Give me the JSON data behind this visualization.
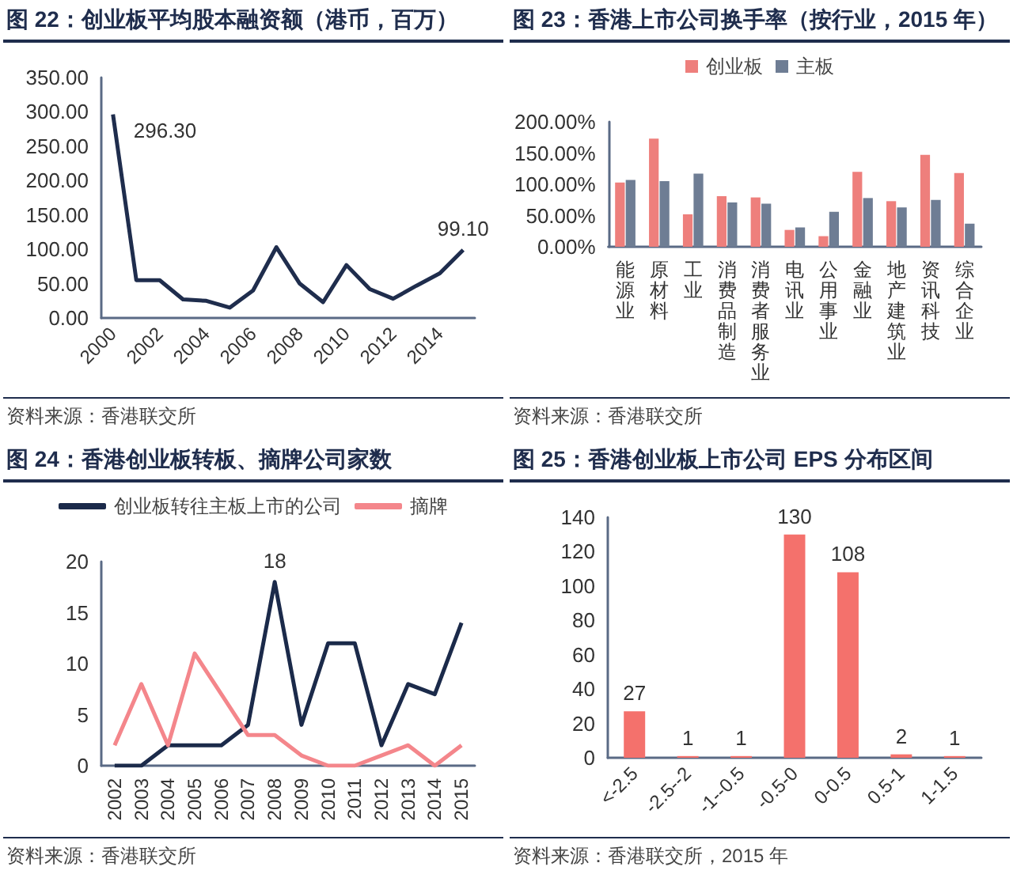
{
  "chart_data": [
    {
      "type": "line",
      "title": "图 22：创业板平均股本融资额（港币，百万）",
      "categories": [
        "2000",
        null,
        "2002",
        null,
        "2004",
        null,
        "2006",
        null,
        "2008",
        null,
        "2010",
        null,
        "2012",
        null,
        "2014",
        null
      ],
      "series": [
        {
          "color": "#1f2d4d",
          "values": [
            296.3,
            55,
            55,
            27,
            25,
            15,
            40,
            103,
            50,
            23,
            77,
            42,
            28,
            47,
            65,
            99.1
          ],
          "value_labels": [
            "296.30",
            null,
            null,
            null,
            null,
            null,
            null,
            null,
            null,
            null,
            null,
            null,
            null,
            null,
            null,
            "99.10"
          ]
        }
      ],
      "ylim": [
        0,
        350
      ],
      "yticks": [
        {
          "value": 0,
          "label": "0.00"
        },
        {
          "value": 50,
          "label": "50.00"
        },
        {
          "value": 100,
          "label": "100.00"
        },
        {
          "value": 150,
          "label": "150.00"
        },
        {
          "value": 200,
          "label": "200.00"
        },
        {
          "value": 250,
          "label": "250.00"
        },
        {
          "value": 300,
          "label": "300.00"
        },
        {
          "value": 350,
          "label": "350.00"
        }
      ],
      "grid": false,
      "legend": false,
      "marker": "none",
      "annotations": [
        "资料来源：香港联交所"
      ]
    },
    {
      "type": "bar",
      "title": "图 23：香港上市公司换手率（按行业，2015 年）",
      "categories": [
        "能源业",
        "原材料",
        "工业",
        "消费品制造",
        "消费者服务业",
        "电讯业",
        "公用事业",
        "金融业",
        "地产建筑业",
        "资讯科技",
        "综合企业"
      ],
      "series": [
        {
          "name": "创业板",
          "color": "#ee7f7c",
          "values": [
            103,
            173,
            52,
            81,
            79,
            27,
            17,
            120,
            73,
            147,
            118
          ]
        },
        {
          "name": "主板",
          "color": "#6e7d94",
          "values": [
            107,
            105,
            117,
            71,
            69,
            31,
            56,
            78,
            63,
            75,
            37
          ]
        }
      ],
      "ylim": [
        0,
        200
      ],
      "yticks": [
        {
          "value": 0,
          "label": "0.00%"
        },
        {
          "value": 50,
          "label": "50.00%"
        },
        {
          "value": 100,
          "label": "100.00%"
        },
        {
          "value": 150,
          "label": "150.00%"
        },
        {
          "value": 200,
          "label": "200.00%"
        }
      ],
      "grid": false,
      "legend": "top",
      "annotations": [
        "资料来源：香港联交所"
      ]
    },
    {
      "type": "line",
      "title": "图 24：香港创业板转板、摘牌公司家数",
      "categories": [
        "2002",
        "2003",
        "2004",
        "2005",
        "2006",
        "2007",
        "2008",
        "2009",
        "2010",
        "2011",
        "2012",
        "2013",
        "2014",
        "2015"
      ],
      "series": [
        {
          "name": "创业板转往主板上市的公司",
          "color": "#1b2a4a",
          "values": [
            0,
            0,
            2,
            2,
            2,
            4,
            18,
            4,
            12,
            12,
            2,
            8,
            7,
            14
          ],
          "value_labels": [
            null,
            null,
            null,
            null,
            null,
            null,
            "18",
            null,
            null,
            null,
            null,
            null,
            null,
            null
          ]
        },
        {
          "name": "摘牌",
          "color": "#f4868b",
          "values": [
            2,
            8,
            2,
            11,
            7,
            3,
            3,
            1,
            0,
            0,
            1,
            2,
            0,
            2
          ]
        }
      ],
      "ylim": [
        0,
        20
      ],
      "yticks": [
        0,
        5,
        10,
        15,
        20
      ],
      "grid": false,
      "legend": "top",
      "marker": "none",
      "annotations": [
        "资料来源：香港联交所"
      ]
    },
    {
      "type": "bar",
      "title": "图 25：香港创业板上市公司 EPS 分布区间",
      "categories": [
        "<-2.5",
        "-2.5--2",
        "-1--0.5",
        "-0.5-0",
        "0-0.5",
        "0.5-1",
        "1-1.5"
      ],
      "series": [
        {
          "color": "#f4716c",
          "values": [
            27,
            1,
            1,
            130,
            108,
            2,
            1
          ]
        }
      ],
      "ylim": [
        0,
        140
      ],
      "yticks": [
        0,
        20,
        40,
        60,
        80,
        100,
        120,
        140
      ],
      "grid": false,
      "legend": false,
      "data_labels": true,
      "annotations": [
        "资料来源：香港联交所，2015 年"
      ]
    }
  ]
}
